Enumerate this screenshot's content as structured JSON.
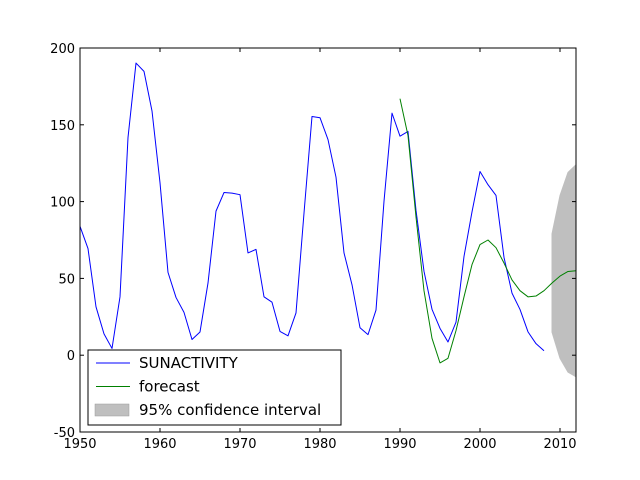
{
  "chart_data": {
    "type": "line",
    "title": "",
    "xlabel": "",
    "ylabel": "",
    "xlim": [
      1950,
      2012
    ],
    "ylim": [
      -50,
      200
    ],
    "xticks": [
      1950,
      1960,
      1970,
      1980,
      1990,
      2000,
      2010
    ],
    "yticks": [
      -50,
      0,
      50,
      100,
      150,
      200
    ],
    "grid": false,
    "legend_position": "lower-left",
    "series": [
      {
        "name": "SUNACTIVITY",
        "color": "#0000ff",
        "x": [
          1950,
          1951,
          1952,
          1953,
          1954,
          1955,
          1956,
          1957,
          1958,
          1959,
          1960,
          1961,
          1962,
          1963,
          1964,
          1965,
          1966,
          1967,
          1968,
          1969,
          1970,
          1971,
          1972,
          1973,
          1974,
          1975,
          1976,
          1977,
          1978,
          1979,
          1980,
          1981,
          1982,
          1983,
          1984,
          1985,
          1986,
          1987,
          1988,
          1989,
          1990,
          1991,
          1992,
          1993,
          1994,
          1995,
          1996,
          1997,
          1998,
          1999,
          2000,
          2001,
          2002,
          2003,
          2004,
          2005,
          2006,
          2007,
          2008
        ],
        "y": [
          83.9,
          69.4,
          31.5,
          13.9,
          4.4,
          38.0,
          141.7,
          190.2,
          184.8,
          159.0,
          112.3,
          53.9,
          37.6,
          27.9,
          10.2,
          15.1,
          47.0,
          93.8,
          105.9,
          105.5,
          104.5,
          66.6,
          68.9,
          38.0,
          34.5,
          15.5,
          12.6,
          27.5,
          92.5,
          155.4,
          154.6,
          140.4,
          115.9,
          66.6,
          45.9,
          17.9,
          13.4,
          29.4,
          100.2,
          157.6,
          142.6,
          145.7,
          94.3,
          54.6,
          29.9,
          17.5,
          8.6,
          21.5,
          64.3,
          93.3,
          119.6,
          111.0,
          104.0,
          63.7,
          40.4,
          29.8,
          15.2,
          7.5,
          2.9
        ]
      },
      {
        "name": "forecast",
        "color": "#008000",
        "x": [
          1990,
          1991,
          1992,
          1993,
          1994,
          1995,
          1996,
          1997,
          1998,
          1999,
          2000,
          2001,
          2002,
          2003,
          2004,
          2005,
          2006,
          2007,
          2008,
          2009,
          2010,
          2011,
          2012
        ],
        "y": [
          167.0,
          143.0,
          90.0,
          42.0,
          11.0,
          -5.0,
          -2.0,
          16.0,
          38.0,
          59.0,
          72.0,
          75.0,
          70.0,
          60.0,
          49.0,
          42.0,
          38.0,
          38.5,
          42.0,
          47.0,
          51.5,
          54.5,
          55.0
        ]
      }
    ],
    "confidence_interval": {
      "name": "95% confidence interval",
      "color": "#bfbfbf",
      "x": [
        2009,
        2010,
        2011,
        2012
      ],
      "lower": [
        15.0,
        -2.0,
        -11.0,
        -14.0
      ],
      "upper": [
        79.0,
        104.0,
        119.0,
        124.0
      ]
    }
  },
  "legend": {
    "items": [
      {
        "label": "SUNACTIVITY",
        "kind": "line",
        "color": "#0000ff"
      },
      {
        "label": "forecast",
        "kind": "line",
        "color": "#008000"
      },
      {
        "label": "95% confidence interval",
        "kind": "patch",
        "color": "#bfbfbf"
      }
    ]
  }
}
